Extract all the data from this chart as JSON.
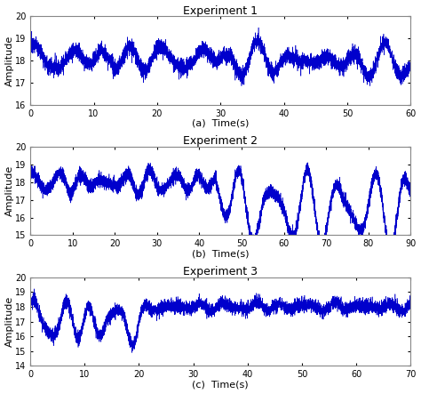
{
  "title1": "Experiment 1",
  "title2": "Experiment 2",
  "title3": "Experiment 3",
  "xlabel1": "(a)  Time(s)",
  "xlabel2": "(b)  Time(s)",
  "xlabel3": "(c)  Time(s)",
  "ylabel": "Amplitude",
  "line_color": "#0000CC",
  "exp1": {
    "t_end": 60,
    "mean": 18.0,
    "ylim": [
      16,
      20
    ],
    "yticks": [
      16,
      17,
      18,
      19,
      20
    ],
    "xticks": [
      0,
      10,
      20,
      30,
      40,
      50,
      60
    ]
  },
  "exp2": {
    "t_end": 90,
    "mean": 18.0,
    "transition": 44,
    "ylim": [
      15,
      20
    ],
    "yticks": [
      15,
      16,
      17,
      18,
      19,
      20
    ],
    "xticks": [
      0,
      10,
      20,
      30,
      40,
      50,
      60,
      70,
      80,
      90
    ]
  },
  "exp3": {
    "t_end": 70,
    "transition": 20,
    "ylim": [
      14,
      20
    ],
    "yticks": [
      14,
      15,
      16,
      17,
      18,
      19,
      20
    ],
    "xticks": [
      0,
      10,
      20,
      30,
      40,
      50,
      60,
      70
    ]
  },
  "figsize": [
    4.74,
    4.43
  ],
  "dpi": 100
}
